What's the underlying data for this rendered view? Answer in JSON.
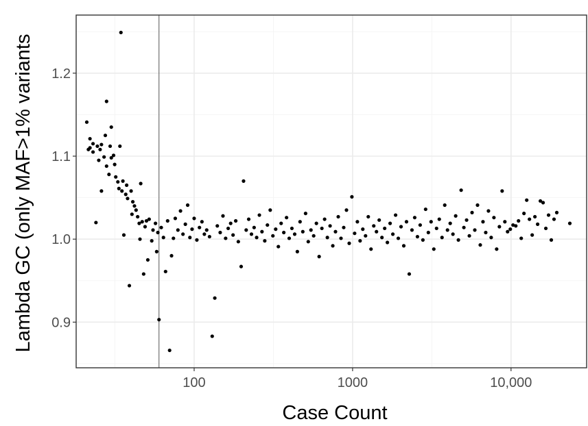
{
  "chart_data": {
    "type": "scatter",
    "title": "",
    "xlabel": "Case Count",
    "ylabel": "Lambda GC (only MAF>1% variants",
    "x_scale": "log10",
    "xlim": [
      18,
      30000
    ],
    "ylim": [
      0.845,
      1.27
    ],
    "x_ticks": [
      {
        "value": 100,
        "label": "100"
      },
      {
        "value": 1000,
        "label": "1000"
      },
      {
        "value": 10000,
        "label": "10,000"
      }
    ],
    "y_ticks": [
      {
        "value": 0.9,
        "label": "0.9"
      },
      {
        "value": 1.0,
        "label": "1.0"
      },
      {
        "value": 1.1,
        "label": "1.1"
      },
      {
        "value": 1.2,
        "label": "1.2"
      }
    ],
    "grid": true,
    "reference_line_x": 60,
    "point_color": "#000000",
    "series": [
      {
        "points": [
          [
            21,
            1.141
          ],
          [
            21.5,
            1.108
          ],
          [
            22,
            1.121
          ],
          [
            22,
            1.11
          ],
          [
            23,
            1.105
          ],
          [
            23,
            1.115
          ],
          [
            24,
            1.02
          ],
          [
            24.5,
            1.112
          ],
          [
            25,
            1.095
          ],
          [
            25.5,
            1.108
          ],
          [
            26,
            1.114
          ],
          [
            26,
            1.058
          ],
          [
            27,
            1.099
          ],
          [
            27.5,
            1.125
          ],
          [
            28,
            1.166
          ],
          [
            28,
            1.088
          ],
          [
            29,
            1.078
          ],
          [
            29.5,
            1.112
          ],
          [
            30,
            1.135
          ],
          [
            30,
            1.098
          ],
          [
            31,
            1.101
          ],
          [
            31.5,
            1.09
          ],
          [
            32,
            1.075
          ],
          [
            33,
            1.069
          ],
          [
            33.5,
            1.061
          ],
          [
            34,
            1.112
          ],
          [
            34.5,
            1.249
          ],
          [
            35,
            1.058
          ],
          [
            35.5,
            1.07
          ],
          [
            36,
            1.005
          ],
          [
            37,
            1.054
          ],
          [
            37.5,
            1.065
          ],
          [
            38,
            1.049
          ],
          [
            39,
            0.944
          ],
          [
            40,
            1.058
          ],
          [
            40.5,
            1.03
          ],
          [
            41,
            1.045
          ],
          [
            42,
            1.04
          ],
          [
            43,
            1.035
          ],
          [
            44,
            1.027
          ],
          [
            45,
            1.019
          ],
          [
            45.5,
            1.0
          ],
          [
            46,
            1.067
          ],
          [
            47,
            1.021
          ],
          [
            48,
            0.958
          ],
          [
            49,
            1.015
          ],
          [
            50,
            1.022
          ],
          [
            51,
            0.975
          ],
          [
            52,
            1.024
          ],
          [
            54,
            0.998
          ],
          [
            55,
            1.011
          ],
          [
            57,
            1.019
          ],
          [
            58,
            0.985
          ],
          [
            59,
            1.008
          ],
          [
            60,
            0.903
          ],
          [
            62,
            1.014
          ],
          [
            64,
            1.002
          ],
          [
            66,
            0.961
          ],
          [
            68,
            1.022
          ],
          [
            70,
            0.866
          ],
          [
            72,
            0.98
          ],
          [
            74,
            1.001
          ],
          [
            76,
            1.025
          ],
          [
            79,
            1.011
          ],
          [
            82,
            1.034
          ],
          [
            85,
            1.006
          ],
          [
            88,
            1.018
          ],
          [
            91,
            1.041
          ],
          [
            94,
            1.002
          ],
          [
            97,
            1.012
          ],
          [
            100,
            1.025
          ],
          [
            104,
            0.999
          ],
          [
            108,
            1.014
          ],
          [
            112,
            1.021
          ],
          [
            116,
            1.006
          ],
          [
            120,
            1.011
          ],
          [
            125,
            1.003
          ],
          [
            130,
            0.883
          ],
          [
            135,
            0.929
          ],
          [
            140,
            1.016
          ],
          [
            146,
            1.008
          ],
          [
            152,
            1.028
          ],
          [
            158,
            1.001
          ],
          [
            164,
            1.013
          ],
          [
            170,
            1.019
          ],
          [
            176,
            1.005
          ],
          [
            183,
            1.022
          ],
          [
            190,
            0.997
          ],
          [
            198,
            0.967
          ],
          [
            205,
            1.07
          ],
          [
            213,
            1.011
          ],
          [
            221,
            1.024
          ],
          [
            230,
            1.006
          ],
          [
            239,
            1.014
          ],
          [
            248,
            1.002
          ],
          [
            258,
            1.029
          ],
          [
            268,
            1.009
          ],
          [
            279,
            0.998
          ],
          [
            290,
            1.017
          ],
          [
            302,
            1.035
          ],
          [
            314,
            1.004
          ],
          [
            327,
            1.012
          ],
          [
            340,
            0.991
          ],
          [
            354,
            1.019
          ],
          [
            368,
            1.008
          ],
          [
            383,
            1.026
          ],
          [
            398,
            1.001
          ],
          [
            414,
            1.013
          ],
          [
            431,
            1.006
          ],
          [
            448,
            0.985
          ],
          [
            466,
            1.021
          ],
          [
            485,
            1.009
          ],
          [
            505,
            1.031
          ],
          [
            525,
            0.997
          ],
          [
            546,
            1.011
          ],
          [
            568,
            1.004
          ],
          [
            591,
            1.019
          ],
          [
            615,
            0.979
          ],
          [
            640,
            1.013
          ],
          [
            666,
            1.024
          ],
          [
            693,
            1.002
          ],
          [
            721,
            1.016
          ],
          [
            750,
            0.992
          ],
          [
            780,
            1.009
          ],
          [
            812,
            1.027
          ],
          [
            845,
            1.001
          ],
          [
            879,
            1.014
          ],
          [
            915,
            1.035
          ],
          [
            952,
            0.995
          ],
          [
            990,
            1.051
          ],
          [
            1030,
            1.007
          ],
          [
            1072,
            1.021
          ],
          [
            1115,
            0.998
          ],
          [
            1160,
            1.012
          ],
          [
            1207,
            1.004
          ],
          [
            1256,
            1.027
          ],
          [
            1307,
            0.988
          ],
          [
            1360,
            1.016
          ],
          [
            1415,
            1.009
          ],
          [
            1472,
            1.023
          ],
          [
            1532,
            1.002
          ],
          [
            1594,
            1.013
          ],
          [
            1658,
            0.996
          ],
          [
            1725,
            1.019
          ],
          [
            1795,
            1.006
          ],
          [
            1868,
            1.029
          ],
          [
            1943,
            1.001
          ],
          [
            2022,
            1.015
          ],
          [
            2104,
            0.992
          ],
          [
            2189,
            1.021
          ],
          [
            2278,
            0.958
          ],
          [
            2370,
            1.011
          ],
          [
            2466,
            1.026
          ],
          [
            2566,
            1.003
          ],
          [
            2670,
            1.017
          ],
          [
            2778,
            0.999
          ],
          [
            2890,
            1.036
          ],
          [
            3007,
            1.008
          ],
          [
            3129,
            1.021
          ],
          [
            3256,
            0.988
          ],
          [
            3388,
            1.013
          ],
          [
            3525,
            1.024
          ],
          [
            3668,
            1.002
          ],
          [
            3816,
            1.041
          ],
          [
            3971,
            1.011
          ],
          [
            4132,
            1.019
          ],
          [
            4299,
            1.006
          ],
          [
            4473,
            1.028
          ],
          [
            4654,
            0.999
          ],
          [
            4843,
            1.059
          ],
          [
            5039,
            1.014
          ],
          [
            5243,
            1.023
          ],
          [
            5455,
            1.004
          ],
          [
            5676,
            1.032
          ],
          [
            5906,
            1.011
          ],
          [
            6145,
            1.041
          ],
          [
            6394,
            0.993
          ],
          [
            6653,
            1.021
          ],
          [
            6923,
            1.008
          ],
          [
            7203,
            1.034
          ],
          [
            7495,
            1.002
          ],
          [
            7799,
            1.026
          ],
          [
            8115,
            0.988
          ],
          [
            8443,
            1.015
          ],
          [
            8785,
            1.058
          ],
          [
            9141,
            1.021
          ],
          [
            9511,
            1.009
          ],
          [
            9897,
            1.012
          ],
          [
            10298,
            1.017
          ],
          [
            10715,
            1.016
          ],
          [
            11149,
            1.022
          ],
          [
            11600,
            1.001
          ],
          [
            12070,
            1.031
          ],
          [
            12559,
            1.047
          ],
          [
            13067,
            1.024
          ],
          [
            13597,
            1.005
          ],
          [
            14148,
            1.027
          ],
          [
            14721,
            1.018
          ],
          [
            15317,
            1.046
          ],
          [
            15937,
            1.044
          ],
          [
            16583,
            1.013
          ],
          [
            17254,
            1.029
          ],
          [
            17953,
            0.999
          ],
          [
            18680,
            1.024
          ],
          [
            19437,
            1.032
          ],
          [
            23500,
            1.019
          ]
        ]
      }
    ]
  }
}
